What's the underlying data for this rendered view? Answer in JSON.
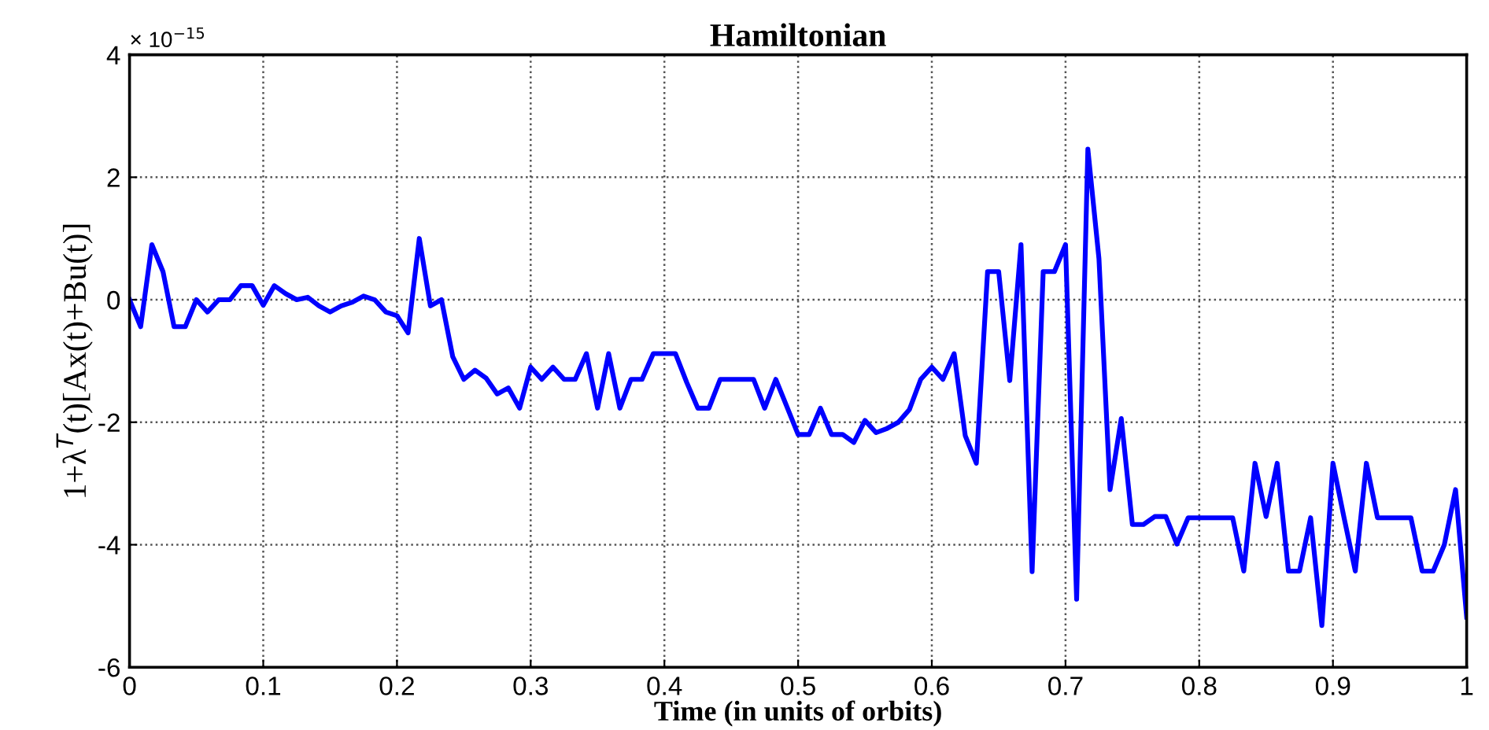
{
  "chart_data": {
    "type": "line",
    "title": "Hamiltonian",
    "xlabel": "Time (in units of orbits)",
    "ylabel": "1+λ$^{T}$(t)[Ax(t)+Bu(t)]",
    "annotations": [
      "× 10$^{−15}$"
    ],
    "x": [
      0,
      0.0083,
      0.0167,
      0.025,
      0.0333,
      0.0417,
      0.05,
      0.0583,
      0.0667,
      0.075,
      0.0833,
      0.0917,
      0.1,
      0.1083,
      0.1167,
      0.125,
      0.1333,
      0.1417,
      0.15,
      0.1583,
      0.1667,
      0.175,
      0.1833,
      0.1917,
      0.2,
      0.2083,
      0.2167,
      0.225,
      0.2333,
      0.2417,
      0.25,
      0.2583,
      0.2667,
      0.275,
      0.2833,
      0.2917,
      0.3,
      0.3083,
      0.3167,
      0.325,
      0.3333,
      0.3417,
      0.35,
      0.3583,
      0.3667,
      0.375,
      0.3833,
      0.3917,
      0.4,
      0.4083,
      0.4167,
      0.425,
      0.4333,
      0.4417,
      0.45,
      0.4583,
      0.4667,
      0.475,
      0.4833,
      0.4917,
      0.5,
      0.5083,
      0.5167,
      0.525,
      0.5333,
      0.5417,
      0.55,
      0.5583,
      0.5667,
      0.575,
      0.5833,
      0.5917,
      0.6,
      0.6083,
      0.6167,
      0.625,
      0.6333,
      0.6417,
      0.65,
      0.6583,
      0.6667,
      0.675,
      0.6833,
      0.6917,
      0.7,
      0.7083,
      0.7167,
      0.725,
      0.7333,
      0.7417,
      0.75,
      0.7583,
      0.7667,
      0.775,
      0.7833,
      0.7917,
      0.8,
      0.8083,
      0.8167,
      0.825,
      0.8333,
      0.8417,
      0.85,
      0.8583,
      0.8667,
      0.875,
      0.8833,
      0.8917,
      0.9,
      0.9083,
      0.9167,
      0.925,
      0.9333,
      0.9417,
      0.95,
      0.9583,
      0.9667,
      0.975,
      0.9833,
      0.9917,
      1
    ],
    "series": [
      {
        "color": "#0000ff",
        "values": [
          0,
          -0.44,
          0.9,
          0.46,
          -0.44,
          -0.44,
          0,
          -0.2,
          0,
          0,
          0.23,
          0.23,
          -0.09,
          0.23,
          0.1,
          0,
          0.04,
          -0.1,
          -0.2,
          -0.1,
          -0.04,
          0.06,
          0,
          -0.2,
          -0.26,
          -0.54,
          1.0,
          -0.1,
          0,
          -0.93,
          -1.3,
          -1.15,
          -1.28,
          -1.54,
          -1.44,
          -1.77,
          -1.1,
          -1.3,
          -1.1,
          -1.3,
          -1.3,
          -0.88,
          -1.77,
          -0.88,
          -1.77,
          -1.3,
          -1.3,
          -0.88,
          -0.88,
          -0.88,
          -1.35,
          -1.77,
          -1.77,
          -1.3,
          -1.3,
          -1.3,
          -1.3,
          -1.77,
          -1.3,
          -1.75,
          -2.2,
          -2.2,
          -1.77,
          -2.2,
          -2.2,
          -2.33,
          -1.97,
          -2.17,
          -2.1,
          -2.0,
          -1.79,
          -1.3,
          -1.1,
          -1.3,
          -0.88,
          -2.22,
          -2.67,
          0.46,
          0.46,
          -1.32,
          0.9,
          -4.44,
          0.46,
          0.46,
          0.9,
          -4.89,
          2.46,
          0.67,
          -3.1,
          -1.94,
          -3.67,
          -3.67,
          -3.54,
          -3.54,
          -3.99,
          -3.56,
          -3.56,
          -3.56,
          -3.56,
          -3.56,
          -4.43,
          -2.67,
          -3.54,
          -2.67,
          -4.43,
          -4.43,
          -3.56,
          -5.32,
          -2.67,
          -3.56,
          -4.43,
          -2.67,
          -3.56,
          -3.56,
          -3.56,
          -3.56,
          -4.43,
          -4.43,
          -4.0,
          -3.1,
          -5.18
        ]
      }
    ],
    "xlim": [
      0,
      1
    ],
    "ylim": [
      -6,
      4
    ],
    "xticks": [
      0,
      0.1,
      0.2,
      0.3,
      0.4,
      0.5,
      0.6,
      0.7,
      0.8,
      0.9,
      1
    ],
    "yticks": [
      -6,
      -4,
      -2,
      0,
      2,
      4
    ],
    "grid": true,
    "line_style": "solid",
    "marker": "none"
  }
}
